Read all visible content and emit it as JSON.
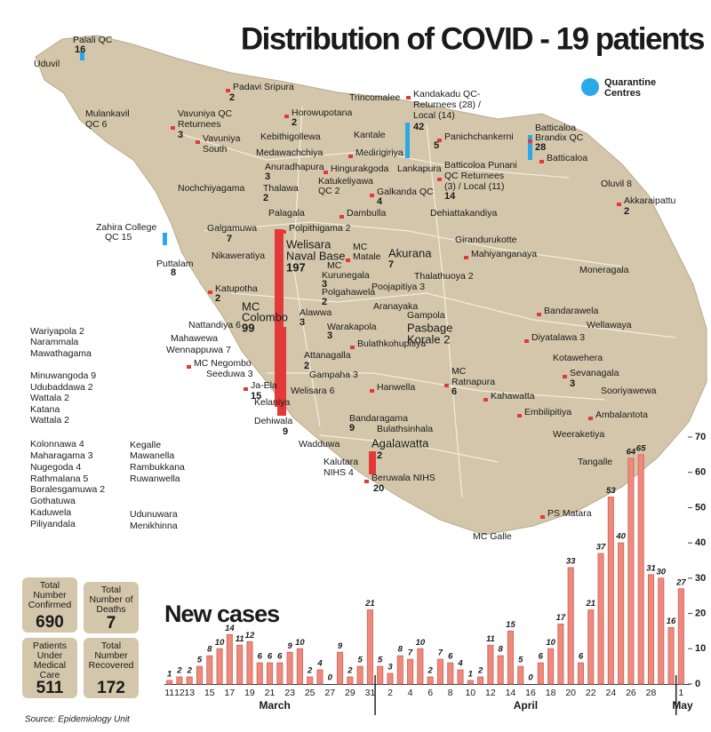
{
  "title": "Distribution of COVID - 19 patients",
  "legend": [
    "Quarantine",
    "Centres"
  ],
  "map_labels": [
    "Palali QC",
    "16",
    "Uduvil",
    "Padavi Sripura",
    "2",
    "Trincomalee",
    "Kandakadu QC-",
    "Returnees (28) /",
    "Local (14)",
    "42",
    "Mulankavil",
    "QC 6",
    "Horowupotana",
    "2",
    "Vavuniya QC",
    "Returnees",
    "3",
    "Kebithigollewa",
    "Vavuniya",
    "South",
    "Kantale",
    "Panichchankerni",
    "5",
    "Batticaloa",
    "Brandix QC",
    "28",
    "Medawachchiya",
    "Medirigiriya",
    "Anuradhapura",
    "3",
    "Hingurakgoda",
    "Lankapura",
    "Batticoloa Punani",
    "QC Returnees",
    "(3) / Local (11)",
    "14",
    "Batticaloa",
    "Nochchiyagama",
    "Thalawa",
    "2",
    "Katukeliyawa",
    "QC 2",
    "Galkanda QC",
    "4",
    "Oluvil 8",
    "Akkaraipattu",
    "2",
    "Palagala",
    "Dambulla",
    "Dehiattakandiya",
    "Zahira College",
    "QC 15",
    "Galgamuwa",
    "7",
    "Polpithigama 2",
    "Welisara",
    "Naval Base",
    "197",
    "Girandurukotte",
    "MC",
    "Matale",
    "Akurana",
    "7",
    "Mahiyanganaya",
    "Nikaweratiya",
    "Puttalam",
    "8",
    "MC",
    "Kurunegala",
    "3",
    "Thalathuoya 2",
    "Moneragala",
    "Katupotha",
    "2",
    "Polgahawela",
    "2",
    "Poojapitiya 3",
    "MC",
    "Colombo",
    "99",
    "Aranayaka",
    "Bandarawela",
    "Nattandiya 6",
    "Alawwa",
    "3",
    "Gampola",
    "Wellawaya",
    "Wariyapola 2",
    "Mahawewa",
    "Warakapola",
    "3",
    "Pasbage",
    "Korale 2",
    "Diyatalawa 3",
    "Narammala",
    "Wennappuwa 7",
    "Bulathkohupitiya",
    "Mawathagama",
    "Kotawehera",
    "MC Negombo",
    "Attanagalla",
    "2",
    "Minuwangoda 9",
    "Seeduwa 3",
    "MC",
    "Ratnapura",
    "6",
    "Gampaha 3",
    "Sevanagala",
    "3",
    "Udubaddawa 2",
    "Ja-Ela",
    "15",
    "Welisara 6",
    "Hanwella",
    "Sooriyawewa",
    "Wattala 2",
    "Kahawatta",
    "Kelaniya",
    "Katana",
    "Embilipitiya",
    "Wattala 2",
    "Dehiwala",
    "9",
    "Bandaragama",
    "9",
    "Ambalantota",
    "Bulathsinhala",
    "Weeraketiya",
    "Kolonnawa 4",
    "Wadduwa",
    "Agalawatta",
    "2",
    "Kegalle",
    "Maharagama  3",
    "Mawanella",
    "Tangalle",
    "Nugegoda 4",
    "Rambukkana",
    "Kalutara",
    "NIHS 4",
    "Beruwala NIHS",
    "20",
    "Rathmalana 5",
    "Ruwanwella",
    "Boralesgamuwa 2",
    "Gothatuwa",
    "PS Matara",
    "Udunuwara",
    "Kaduwela",
    "Menikhinna",
    "Piliyandala",
    "MC Galle"
  ],
  "stats": [
    {
      "label": [
        "Total",
        "Number",
        "Confirmed"
      ],
      "value": "690"
    },
    {
      "label": [
        "Total",
        "Number of",
        "Deaths"
      ],
      "value": "7"
    },
    {
      "label": [
        "Patients",
        "Under",
        "Medical",
        "Care"
      ],
      "value": "511"
    },
    {
      "label": [
        "Total",
        "Number",
        "Recovered"
      ],
      "value": "172"
    }
  ],
  "source": "Source: Epidemiology Unit",
  "chart_data": {
    "type": "bar",
    "title": "New cases",
    "color": "#ec8a7e",
    "categories": [
      "11",
      "12",
      "13",
      null,
      "15",
      null,
      "17",
      null,
      "19",
      null,
      "21",
      null,
      "23",
      null,
      "25",
      null,
      "27",
      null,
      "29",
      null,
      "31",
      null,
      "2",
      null,
      "4",
      null,
      "6",
      null,
      "8",
      null,
      "10",
      null,
      "12",
      null,
      "14",
      null,
      "16",
      null,
      "18",
      null,
      "20",
      null,
      "22",
      null,
      "24",
      null,
      "26",
      null,
      "28",
      null,
      null,
      "1"
    ],
    "values": [
      1,
      2,
      2,
      5,
      8,
      10,
      14,
      11,
      12,
      6,
      6,
      6,
      9,
      10,
      2,
      4,
      0,
      9,
      2,
      5,
      21,
      5,
      3,
      8,
      7,
      10,
      2,
      7,
      6,
      4,
      1,
      2,
      11,
      8,
      15,
      5,
      0,
      6,
      10,
      17,
      33,
      6,
      21,
      37,
      53,
      40,
      64,
      65,
      31,
      30,
      16,
      27
    ],
    "months": [
      "March",
      "April",
      "May"
    ],
    "ylim": [
      0,
      70
    ],
    "yticks": [
      0,
      10,
      20,
      30,
      40,
      50,
      60,
      70
    ]
  }
}
